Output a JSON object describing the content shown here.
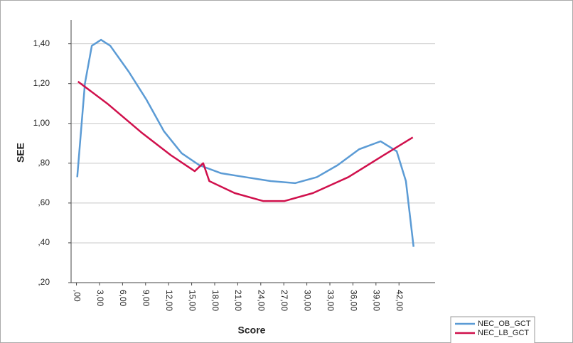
{
  "chart_data": {
    "type": "line",
    "x_label": "Score",
    "y_label": "SEE",
    "xlim": [
      -0.7,
      46.7
    ],
    "ylim": [
      0.2,
      1.52
    ],
    "xticks": [
      {
        "value": 0,
        "label": ",00"
      },
      {
        "value": 3,
        "label": "3,00"
      },
      {
        "value": 6,
        "label": "6,00"
      },
      {
        "value": 9,
        "label": "9,00"
      },
      {
        "value": 12,
        "label": "12,00"
      },
      {
        "value": 15,
        "label": "15,00"
      },
      {
        "value": 18,
        "label": "18,00"
      },
      {
        "value": 21,
        "label": "21,00"
      },
      {
        "value": 24,
        "label": "24,00"
      },
      {
        "value": 27,
        "label": "27,00"
      },
      {
        "value": 30,
        "label": "30,00"
      },
      {
        "value": 33,
        "label": "33,00"
      },
      {
        "value": 36,
        "label": "36,00"
      },
      {
        "value": 39,
        "label": "39,00"
      },
      {
        "value": 42,
        "label": "42,00"
      }
    ],
    "yticks": [
      {
        "value": 0.2,
        "label": ",20"
      },
      {
        "value": 0.4,
        "label": ",40"
      },
      {
        "value": 0.6,
        "label": ",60"
      },
      {
        "value": 0.8,
        "label": ",80"
      },
      {
        "value": 1.0,
        "label": "1,00"
      },
      {
        "value": 1.2,
        "label": "1,20"
      },
      {
        "value": 1.4,
        "label": "1,40"
      }
    ],
    "grid": true,
    "legend": "bottom-right",
    "series": [
      {
        "name": "NEC_OB_GCT",
        "color": "#5b9bd5",
        "x": [
          0.1,
          1.1,
          2.0,
          3.2,
          4.4,
          6.8,
          9.1,
          11.4,
          13.7,
          16.0,
          18.8,
          22.0,
          25.3,
          28.5,
          31.3,
          34.0,
          36.8,
          39.6,
          41.7,
          42.9,
          43.9
        ],
        "values": [
          0.73,
          1.2,
          1.39,
          1.42,
          1.39,
          1.26,
          1.12,
          0.96,
          0.85,
          0.79,
          0.75,
          0.73,
          0.71,
          0.7,
          0.73,
          0.79,
          0.87,
          0.91,
          0.86,
          0.71,
          0.38
        ]
      },
      {
        "name": "NEC_LB_GCT",
        "color": "#d0104c",
        "x": [
          0.2,
          4.0,
          8.6,
          12.3,
          15.4,
          16.5,
          17.3,
          20.6,
          24.3,
          27.1,
          30.8,
          35.4,
          40.0,
          43.8
        ],
        "values": [
          1.21,
          1.1,
          0.95,
          0.84,
          0.76,
          0.8,
          0.71,
          0.65,
          0.61,
          0.61,
          0.65,
          0.73,
          0.84,
          0.93
        ]
      }
    ]
  }
}
